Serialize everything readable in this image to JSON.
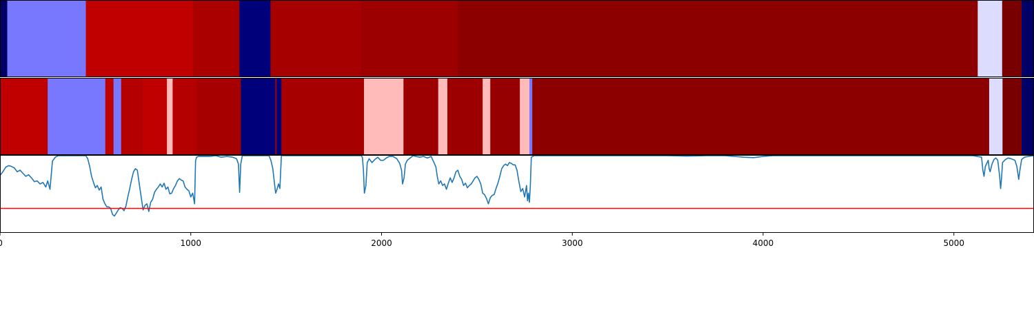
{
  "chart_data": {
    "type": "heatmap",
    "xlim": [
      0,
      5420
    ],
    "x_ticks": [
      0,
      1000,
      2000,
      3000,
      4000,
      5000
    ],
    "x_tick_labels": [
      "0",
      "1000",
      "2000",
      "3000",
      "4000",
      "5000"
    ],
    "colors": {
      "dark_navy": "#000066",
      "navy": "#00007a",
      "light_blue": "#7878ff",
      "pale_lavender": "#dcdcff",
      "red": "#c00000",
      "red_dark": "#aa0000",
      "red_darker": "#a00000",
      "red_darkest": "#8c0000",
      "maroon": "#780000",
      "pink": "#ffbaba",
      "line": "#1f77b4",
      "threshold": "#ff0000"
    },
    "track_1": [
      {
        "start": 0,
        "end": 38,
        "color": "#000066"
      },
      {
        "start": 38,
        "end": 450,
        "color": "#7878ff"
      },
      {
        "start": 450,
        "end": 1010,
        "color": "#c00000"
      },
      {
        "start": 1010,
        "end": 1255,
        "color": "#aa0000"
      },
      {
        "start": 1255,
        "end": 1418,
        "color": "#00007a"
      },
      {
        "start": 1418,
        "end": 1890,
        "color": "#a60000"
      },
      {
        "start": 1890,
        "end": 2400,
        "color": "#9c0000"
      },
      {
        "start": 2400,
        "end": 5125,
        "color": "#8c0000"
      },
      {
        "start": 5125,
        "end": 5253,
        "color": "#dcdcff"
      },
      {
        "start": 5253,
        "end": 5355,
        "color": "#780000"
      },
      {
        "start": 5355,
        "end": 5420,
        "color": "#000066"
      }
    ],
    "track_2": [
      {
        "start": 0,
        "end": 250,
        "color": "#c00000"
      },
      {
        "start": 250,
        "end": 552,
        "color": "#7878ff"
      },
      {
        "start": 552,
        "end": 595,
        "color": "#c00000"
      },
      {
        "start": 595,
        "end": 635,
        "color": "#7878ff"
      },
      {
        "start": 635,
        "end": 750,
        "color": "#b40000"
      },
      {
        "start": 750,
        "end": 875,
        "color": "#c00000"
      },
      {
        "start": 875,
        "end": 905,
        "color": "#ffbaba"
      },
      {
        "start": 905,
        "end": 1030,
        "color": "#b40000"
      },
      {
        "start": 1030,
        "end": 1262,
        "color": "#a60000"
      },
      {
        "start": 1262,
        "end": 1443,
        "color": "#00007a"
      },
      {
        "start": 1443,
        "end": 1450,
        "color": "#a00000"
      },
      {
        "start": 1450,
        "end": 1475,
        "color": "#00007a"
      },
      {
        "start": 1475,
        "end": 1908,
        "color": "#a60000"
      },
      {
        "start": 1908,
        "end": 2115,
        "color": "#ffbaba"
      },
      {
        "start": 2115,
        "end": 2297,
        "color": "#9c0000"
      },
      {
        "start": 2297,
        "end": 2345,
        "color": "#ffbaba"
      },
      {
        "start": 2345,
        "end": 2530,
        "color": "#9c0000"
      },
      {
        "start": 2530,
        "end": 2570,
        "color": "#ffbaba"
      },
      {
        "start": 2570,
        "end": 2725,
        "color": "#960000"
      },
      {
        "start": 2725,
        "end": 2775,
        "color": "#ffbaba"
      },
      {
        "start": 2775,
        "end": 2790,
        "color": "#7878ff"
      },
      {
        "start": 2790,
        "end": 5185,
        "color": "#8c0000"
      },
      {
        "start": 5185,
        "end": 5255,
        "color": "#dcdcff"
      },
      {
        "start": 5255,
        "end": 5355,
        "color": "#780000"
      },
      {
        "start": 5355,
        "end": 5420,
        "color": "#000066"
      }
    ],
    "line_panel": {
      "ylim": [
        -0.02,
        0.99
      ],
      "threshold": 0.3,
      "points": [
        [
          0,
          0.73
        ],
        [
          15,
          0.78
        ],
        [
          30,
          0.84
        ],
        [
          45,
          0.86
        ],
        [
          60,
          0.85
        ],
        [
          75,
          0.83
        ],
        [
          90,
          0.78
        ],
        [
          105,
          0.8
        ],
        [
          120,
          0.76
        ],
        [
          135,
          0.72
        ],
        [
          150,
          0.74
        ],
        [
          165,
          0.7
        ],
        [
          180,
          0.65
        ],
        [
          195,
          0.66
        ],
        [
          210,
          0.62
        ],
        [
          225,
          0.64
        ],
        [
          240,
          0.58
        ],
        [
          250,
          0.66
        ],
        [
          262,
          0.55
        ],
        [
          275,
          0.92
        ],
        [
          290,
          0.97
        ],
        [
          305,
          0.99
        ],
        [
          330,
          0.99
        ],
        [
          360,
          0.99
        ],
        [
          390,
          0.99
        ],
        [
          420,
          0.99
        ],
        [
          440,
          0.99
        ],
        [
          450,
          0.99
        ],
        [
          460,
          0.95
        ],
        [
          470,
          0.85
        ],
        [
          480,
          0.72
        ],
        [
          490,
          0.64
        ],
        [
          500,
          0.57
        ],
        [
          510,
          0.6
        ],
        [
          520,
          0.54
        ],
        [
          530,
          0.58
        ],
        [
          540,
          0.42
        ],
        [
          550,
          0.36
        ],
        [
          560,
          0.32
        ],
        [
          570,
          0.32
        ],
        [
          580,
          0.3
        ],
        [
          590,
          0.22
        ],
        [
          600,
          0.2
        ],
        [
          610,
          0.24
        ],
        [
          620,
          0.28
        ],
        [
          630,
          0.31
        ],
        [
          640,
          0.3
        ],
        [
          650,
          0.27
        ],
        [
          660,
          0.33
        ],
        [
          670,
          0.45
        ],
        [
          680,
          0.56
        ],
        [
          690,
          0.68
        ],
        [
          700,
          0.78
        ],
        [
          710,
          0.82
        ],
        [
          720,
          0.8
        ],
        [
          730,
          0.62
        ],
        [
          740,
          0.45
        ],
        [
          750,
          0.28
        ],
        [
          760,
          0.34
        ],
        [
          770,
          0.36
        ],
        [
          780,
          0.26
        ],
        [
          790,
          0.38
        ],
        [
          800,
          0.42
        ],
        [
          810,
          0.51
        ],
        [
          820,
          0.55
        ],
        [
          830,
          0.58
        ],
        [
          840,
          0.62
        ],
        [
          850,
          0.58
        ],
        [
          860,
          0.63
        ],
        [
          870,
          0.55
        ],
        [
          880,
          0.58
        ],
        [
          890,
          0.49
        ],
        [
          900,
          0.5
        ],
        [
          910,
          0.56
        ],
        [
          920,
          0.6
        ],
        [
          930,
          0.66
        ],
        [
          940,
          0.69
        ],
        [
          950,
          0.67
        ],
        [
          960,
          0.66
        ],
        [
          970,
          0.58
        ],
        [
          980,
          0.55
        ],
        [
          990,
          0.53
        ],
        [
          1000,
          0.45
        ],
        [
          1010,
          0.5
        ],
        [
          1020,
          0.36
        ],
        [
          1025,
          0.92
        ],
        [
          1030,
          0.97
        ],
        [
          1040,
          0.98
        ],
        [
          1070,
          0.98
        ],
        [
          1100,
          0.98
        ],
        [
          1130,
          0.99
        ],
        [
          1160,
          0.97
        ],
        [
          1190,
          0.98
        ],
        [
          1220,
          0.97
        ],
        [
          1240,
          0.95
        ],
        [
          1250,
          0.88
        ],
        [
          1256,
          0.51
        ],
        [
          1262,
          0.88
        ],
        [
          1270,
          0.99
        ],
        [
          1300,
          0.99
        ],
        [
          1330,
          0.99
        ],
        [
          1360,
          0.99
        ],
        [
          1390,
          0.99
        ],
        [
          1410,
          0.99
        ],
        [
          1420,
          0.93
        ],
        [
          1430,
          0.82
        ],
        [
          1440,
          0.6
        ],
        [
          1445,
          0.5
        ],
        [
          1452,
          0.55
        ],
        [
          1460,
          0.62
        ],
        [
          1467,
          0.56
        ],
        [
          1475,
          0.99
        ],
        [
          1500,
          0.99
        ],
        [
          1600,
          0.99
        ],
        [
          1700,
          0.99
        ],
        [
          1800,
          0.99
        ],
        [
          1880,
          0.99
        ],
        [
          1895,
          0.99
        ],
        [
          1900,
          0.96
        ],
        [
          1905,
          0.8
        ],
        [
          1910,
          0.5
        ],
        [
          1918,
          0.6
        ],
        [
          1925,
          0.9
        ],
        [
          1935,
          0.95
        ],
        [
          1950,
          0.9
        ],
        [
          1965,
          0.94
        ],
        [
          1980,
          0.97
        ],
        [
          1995,
          0.93
        ],
        [
          2010,
          0.93
        ],
        [
          2025,
          0.96
        ],
        [
          2040,
          0.98
        ],
        [
          2060,
          0.98
        ],
        [
          2080,
          0.95
        ],
        [
          2095,
          0.89
        ],
        [
          2105,
          0.8
        ],
        [
          2110,
          0.62
        ],
        [
          2118,
          0.7
        ],
        [
          2125,
          0.88
        ],
        [
          2135,
          0.93
        ],
        [
          2150,
          0.96
        ],
        [
          2165,
          0.99
        ],
        [
          2180,
          0.98
        ],
        [
          2200,
          0.97
        ],
        [
          2220,
          0.98
        ],
        [
          2240,
          0.96
        ],
        [
          2260,
          0.98
        ],
        [
          2275,
          0.9
        ],
        [
          2285,
          0.84
        ],
        [
          2292,
          0.72
        ],
        [
          2300,
          0.62
        ],
        [
          2310,
          0.66
        ],
        [
          2320,
          0.6
        ],
        [
          2330,
          0.62
        ],
        [
          2340,
          0.55
        ],
        [
          2350,
          0.63
        ],
        [
          2360,
          0.7
        ],
        [
          2370,
          0.64
        ],
        [
          2380,
          0.7
        ],
        [
          2390,
          0.78
        ],
        [
          2400,
          0.8
        ],
        [
          2410,
          0.72
        ],
        [
          2420,
          0.68
        ],
        [
          2430,
          0.6
        ],
        [
          2440,
          0.63
        ],
        [
          2450,
          0.57
        ],
        [
          2460,
          0.6
        ],
        [
          2470,
          0.62
        ],
        [
          2480,
          0.66
        ],
        [
          2490,
          0.7
        ],
        [
          2500,
          0.72
        ],
        [
          2510,
          0.68
        ],
        [
          2520,
          0.62
        ],
        [
          2530,
          0.5
        ],
        [
          2540,
          0.48
        ],
        [
          2550,
          0.43
        ],
        [
          2560,
          0.36
        ],
        [
          2570,
          0.44
        ],
        [
          2580,
          0.47
        ],
        [
          2590,
          0.48
        ],
        [
          2600,
          0.56
        ],
        [
          2610,
          0.63
        ],
        [
          2620,
          0.72
        ],
        [
          2630,
          0.82
        ],
        [
          2640,
          0.86
        ],
        [
          2650,
          0.88
        ],
        [
          2660,
          0.86
        ],
        [
          2670,
          0.9
        ],
        [
          2680,
          0.89
        ],
        [
          2690,
          0.87
        ],
        [
          2700,
          0.87
        ],
        [
          2710,
          0.8
        ],
        [
          2720,
          0.65
        ],
        [
          2730,
          0.52
        ],
        [
          2740,
          0.56
        ],
        [
          2750,
          0.45
        ],
        [
          2760,
          0.6
        ],
        [
          2765,
          0.4
        ],
        [
          2770,
          0.5
        ],
        [
          2775,
          0.38
        ],
        [
          2780,
          0.6
        ],
        [
          2785,
          0.97
        ],
        [
          2800,
          0.99
        ],
        [
          2900,
          0.99
        ],
        [
          3000,
          0.99
        ],
        [
          3200,
          0.99
        ],
        [
          3400,
          0.99
        ],
        [
          3500,
          0.99
        ],
        [
          3600,
          0.985
        ],
        [
          3700,
          0.99
        ],
        [
          3800,
          0.99
        ],
        [
          3850,
          0.98
        ],
        [
          3900,
          0.97
        ],
        [
          3950,
          0.965
        ],
        [
          4000,
          0.98
        ],
        [
          4050,
          0.99
        ],
        [
          4200,
          0.99
        ],
        [
          4400,
          0.99
        ],
        [
          4600,
          0.99
        ],
        [
          4800,
          0.99
        ],
        [
          5000,
          0.99
        ],
        [
          5100,
          0.99
        ],
        [
          5145,
          0.97
        ],
        [
          5152,
          0.8
        ],
        [
          5158,
          0.72
        ],
        [
          5165,
          0.85
        ],
        [
          5180,
          0.93
        ],
        [
          5185,
          0.82
        ],
        [
          5190,
          0.78
        ],
        [
          5200,
          0.88
        ],
        [
          5210,
          0.94
        ],
        [
          5220,
          0.96
        ],
        [
          5230,
          0.93
        ],
        [
          5240,
          0.72
        ],
        [
          5245,
          0.56
        ],
        [
          5250,
          0.7
        ],
        [
          5255,
          0.9
        ],
        [
          5270,
          0.94
        ],
        [
          5285,
          0.96
        ],
        [
          5300,
          0.95
        ],
        [
          5320,
          0.93
        ],
        [
          5330,
          0.85
        ],
        [
          5340,
          0.68
        ],
        [
          5346,
          0.8
        ],
        [
          5355,
          0.94
        ],
        [
          5370,
          0.97
        ],
        [
          5390,
          0.98
        ],
        [
          5420,
          0.99
        ]
      ]
    }
  }
}
